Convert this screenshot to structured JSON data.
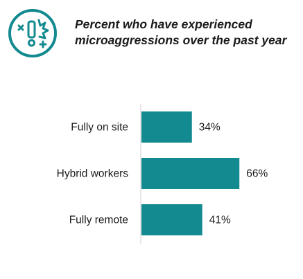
{
  "header": {
    "icon": "alert-burst-icon",
    "accent_color": "#138a8f",
    "title_line1": "Percent who have experienced",
    "title_line2": "microaggressions over the past year"
  },
  "chart_data": {
    "type": "bar",
    "orientation": "horizontal",
    "title": "Percent who have experienced microaggressions over the past year",
    "categories": [
      "Fully on site",
      "Hybrid workers",
      "Fully remote"
    ],
    "values": [
      34,
      66,
      41
    ],
    "value_labels": [
      "34%",
      "66%",
      "41%"
    ],
    "unit": "%",
    "xlim": [
      0,
      100
    ],
    "bar_color": "#138a8f",
    "grid": false,
    "legend": "none"
  }
}
